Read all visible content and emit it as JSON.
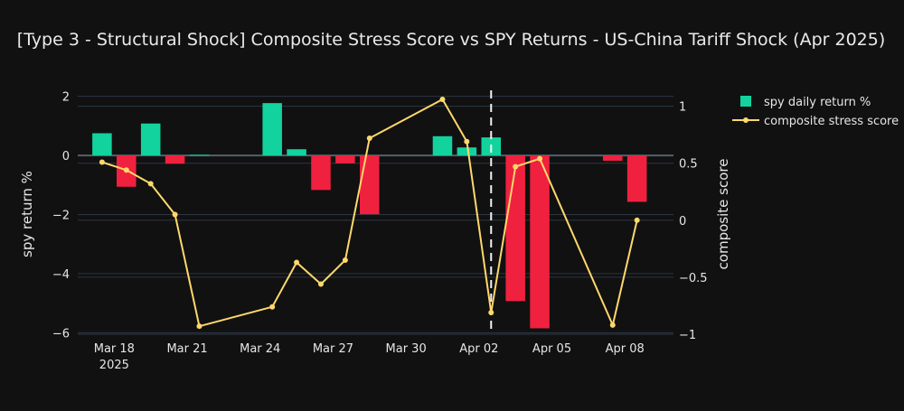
{
  "chart_data": {
    "type": "bar+line",
    "title": "[Type 3 - Structural Shock] Composite Stress Score vs SPY Returns - US-China Tariff Shock (Apr 2025)",
    "ylabel_left": "spy return %",
    "ylabel_right": "composite score",
    "ylim_left": [
      -6.05,
      2.05
    ],
    "ylim_right": [
      -1.0,
      1.1
    ],
    "yticks_left": [
      {
        "value": 2,
        "label": "2"
      },
      {
        "value": 0,
        "label": "0"
      },
      {
        "value": -2,
        "label": "−2"
      },
      {
        "value": -4,
        "label": "−4"
      },
      {
        "value": -6,
        "label": "−6"
      }
    ],
    "yticks_right": [
      {
        "value": 1,
        "label": "1"
      },
      {
        "value": 0.5,
        "label": "0.5"
      },
      {
        "value": 0,
        "label": "0"
      },
      {
        "value": -0.5,
        "label": "−0.5"
      },
      {
        "value": -1,
        "label": "−1"
      }
    ],
    "xticks": [
      {
        "day": 1,
        "label": "Mar 18",
        "sub": "2025"
      },
      {
        "day": 4,
        "label": "Mar 21",
        "sub": ""
      },
      {
        "day": 7,
        "label": "Mar 24",
        "sub": ""
      },
      {
        "day": 10,
        "label": "Mar 27",
        "sub": ""
      },
      {
        "day": 13,
        "label": "Mar 30",
        "sub": ""
      },
      {
        "day": 16,
        "label": "Apr 02",
        "sub": ""
      },
      {
        "day": 19,
        "label": "Apr 05",
        "sub": ""
      },
      {
        "day": 22,
        "label": "Apr 08",
        "sub": ""
      }
    ],
    "event_marker_day": 16.5,
    "colors": {
      "positive": "#12d39e",
      "negative": "#f0213f",
      "line": "#ffd86b",
      "grid": "#2d3642",
      "zero_line": "#56606d"
    },
    "series": [
      {
        "name": "spy daily return %",
        "kind": "bar",
        "points": [
          {
            "day": 0.5,
            "value": 0.75
          },
          {
            "day": 1.5,
            "value": -1.06
          },
          {
            "day": 2.5,
            "value": 1.08
          },
          {
            "day": 3.5,
            "value": -0.28
          },
          {
            "day": 4.5,
            "value": 0.02
          },
          {
            "day": 7.5,
            "value": 1.77
          },
          {
            "day": 8.5,
            "value": 0.21
          },
          {
            "day": 9.5,
            "value": -1.17
          },
          {
            "day": 10.5,
            "value": -0.27
          },
          {
            "day": 11.5,
            "value": -1.99
          },
          {
            "day": 14.5,
            "value": 0.65
          },
          {
            "day": 15.5,
            "value": 0.27
          },
          {
            "day": 16.5,
            "value": 0.61
          },
          {
            "day": 17.5,
            "value": -4.93
          },
          {
            "day": 18.5,
            "value": -5.85
          },
          {
            "day": 21.5,
            "value": -0.18
          },
          {
            "day": 22.5,
            "value": -1.57
          }
        ]
      },
      {
        "name": "composite stress score",
        "kind": "line",
        "points": [
          {
            "day": 0.5,
            "value": 0.51
          },
          {
            "day": 1.5,
            "value": 0.44
          },
          {
            "day": 2.5,
            "value": 0.32
          },
          {
            "day": 3.5,
            "value": 0.05
          },
          {
            "day": 4.5,
            "value": -0.93
          },
          {
            "day": 7.5,
            "value": -0.76
          },
          {
            "day": 8.5,
            "value": -0.37
          },
          {
            "day": 9.5,
            "value": -0.56
          },
          {
            "day": 10.5,
            "value": -0.35
          },
          {
            "day": 11.5,
            "value": 0.72
          },
          {
            "day": 14.5,
            "value": 1.06
          },
          {
            "day": 15.5,
            "value": 0.69
          },
          {
            "day": 16.5,
            "value": -0.81
          },
          {
            "day": 17.5,
            "value": 0.47
          },
          {
            "day": 18.5,
            "value": 0.54
          },
          {
            "day": 21.5,
            "value": -0.92
          },
          {
            "day": 22.5,
            "value": 0.0
          }
        ]
      }
    ]
  }
}
